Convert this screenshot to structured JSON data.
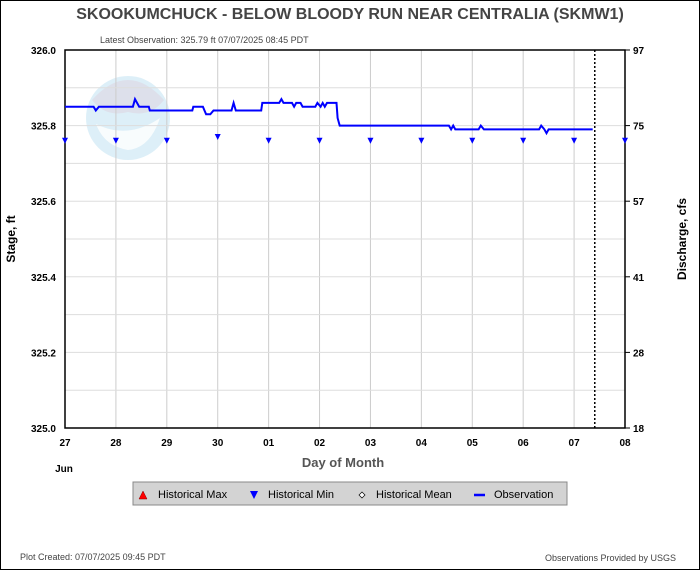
{
  "chart_data": {
    "type": "line",
    "title": "SKOOKUMCHUCK - BELOW BLOODY RUN NEAR CENTRALIA  (SKMW1)",
    "subtitle": "Latest Observation: 325.79 ft 07/07/2025 08:45 PDT",
    "xlabel": "Day of Month",
    "ylabel": "Stage, ft",
    "y2label": "Discharge, cfs",
    "month_label": "Jun",
    "xlim": [
      "2025-06-27T00:00",
      "2025-07-08T00:00"
    ],
    "ylim": [
      325.0,
      326.0
    ],
    "x_ticks": [
      "27",
      "28",
      "29",
      "30",
      "01",
      "02",
      "03",
      "04",
      "05",
      "06",
      "07",
      "08"
    ],
    "y_ticks": [
      "325.0",
      "325.2",
      "325.4",
      "325.6",
      "325.8",
      "326.0"
    ],
    "y2_ticks": [
      {
        "stage": 325.0,
        "label": "18"
      },
      {
        "stage": 325.2,
        "label": "28"
      },
      {
        "stage": 325.4,
        "label": "41"
      },
      {
        "stage": 325.6,
        "label": "57"
      },
      {
        "stage": 325.8,
        "label": "75"
      },
      {
        "stage": 326.0,
        "label": "97"
      }
    ],
    "grid": true,
    "current_time": "2025-07-07T09:45",
    "series": [
      {
        "name": "Observation",
        "color": "#0000ff",
        "points": [
          [
            "2025-06-27T00:00",
            325.85
          ],
          [
            "2025-06-27T13:30",
            325.85
          ],
          [
            "2025-06-27T14:30",
            325.84
          ],
          [
            "2025-06-27T16:00",
            325.85
          ],
          [
            "2025-06-28T08:00",
            325.85
          ],
          [
            "2025-06-28T09:00",
            325.87
          ],
          [
            "2025-06-28T11:00",
            325.85
          ],
          [
            "2025-06-28T15:30",
            325.85
          ],
          [
            "2025-06-28T16:00",
            325.84
          ],
          [
            "2025-06-29T12:00",
            325.84
          ],
          [
            "2025-06-29T12:30",
            325.85
          ],
          [
            "2025-06-29T17:00",
            325.85
          ],
          [
            "2025-06-29T18:30",
            325.83
          ],
          [
            "2025-06-29T20:30",
            325.83
          ],
          [
            "2025-06-29T22:00",
            325.84
          ],
          [
            "2025-06-30T06:30",
            325.84
          ],
          [
            "2025-06-30T07:30",
            325.86
          ],
          [
            "2025-06-30T08:30",
            325.84
          ],
          [
            "2025-06-30T20:30",
            325.84
          ],
          [
            "2025-06-30T21:00",
            325.86
          ],
          [
            "2025-07-01T05:00",
            325.86
          ],
          [
            "2025-07-01T06:00",
            325.87
          ],
          [
            "2025-07-01T07:00",
            325.86
          ],
          [
            "2025-07-01T11:00",
            325.86
          ],
          [
            "2025-07-01T12:00",
            325.85
          ],
          [
            "2025-07-01T13:00",
            325.86
          ],
          [
            "2025-07-01T15:00",
            325.86
          ],
          [
            "2025-07-01T16:00",
            325.85
          ],
          [
            "2025-07-01T22:00",
            325.85
          ],
          [
            "2025-07-01T23:00",
            325.86
          ],
          [
            "2025-07-02T00:30",
            325.85
          ],
          [
            "2025-07-02T01:30",
            325.86
          ],
          [
            "2025-07-02T02:30",
            325.85
          ],
          [
            "2025-07-02T03:30",
            325.86
          ],
          [
            "2025-07-02T08:00",
            325.86
          ],
          [
            "2025-07-02T08:30",
            325.82
          ],
          [
            "2025-07-02T09:30",
            325.8
          ],
          [
            "2025-07-04T13:00",
            325.8
          ],
          [
            "2025-07-04T14:00",
            325.79
          ],
          [
            "2025-07-04T15:00",
            325.8
          ],
          [
            "2025-07-04T16:00",
            325.79
          ],
          [
            "2025-07-05T03:00",
            325.79
          ],
          [
            "2025-07-05T04:00",
            325.8
          ],
          [
            "2025-07-05T05:30",
            325.79
          ],
          [
            "2025-07-06T07:30",
            325.79
          ],
          [
            "2025-07-06T08:30",
            325.8
          ],
          [
            "2025-07-06T10:00",
            325.79
          ],
          [
            "2025-07-06T11:00",
            325.78
          ],
          [
            "2025-07-06T12:00",
            325.79
          ],
          [
            "2025-07-07T08:45",
            325.79
          ]
        ]
      },
      {
        "name": "Historical Min",
        "color": "#0000ff",
        "marker": "triangle-down",
        "points": [
          [
            "2025-06-27T00:00",
            325.76
          ],
          [
            "2025-06-28T00:00",
            325.76
          ],
          [
            "2025-06-29T00:00",
            325.76
          ],
          [
            "2025-06-30T00:00",
            325.77
          ],
          [
            "2025-07-01T00:00",
            325.76
          ],
          [
            "2025-07-02T00:00",
            325.76
          ],
          [
            "2025-07-03T00:00",
            325.76
          ],
          [
            "2025-07-04T00:00",
            325.76
          ],
          [
            "2025-07-05T00:00",
            325.76
          ],
          [
            "2025-07-06T00:00",
            325.76
          ],
          [
            "2025-07-07T00:00",
            325.76
          ],
          [
            "2025-07-08T00:00",
            325.76
          ]
        ]
      }
    ],
    "legend": {
      "placement": "bottom",
      "items": [
        {
          "label": "Historical Max",
          "icon": "triangle-up",
          "color": "#ff0000"
        },
        {
          "label": "Historical Min",
          "icon": "triangle-down",
          "color": "#0000ff"
        },
        {
          "label": "Historical Mean",
          "icon": "diamond",
          "color": "#000000"
        },
        {
          "label": "Observation",
          "icon": "line",
          "color": "#0000ff"
        }
      ]
    }
  },
  "footer": {
    "created": "Plot Created: 07/07/2025 09:45 PDT",
    "provider": "Observations Provided by USGS"
  },
  "watermark": "NOAA"
}
